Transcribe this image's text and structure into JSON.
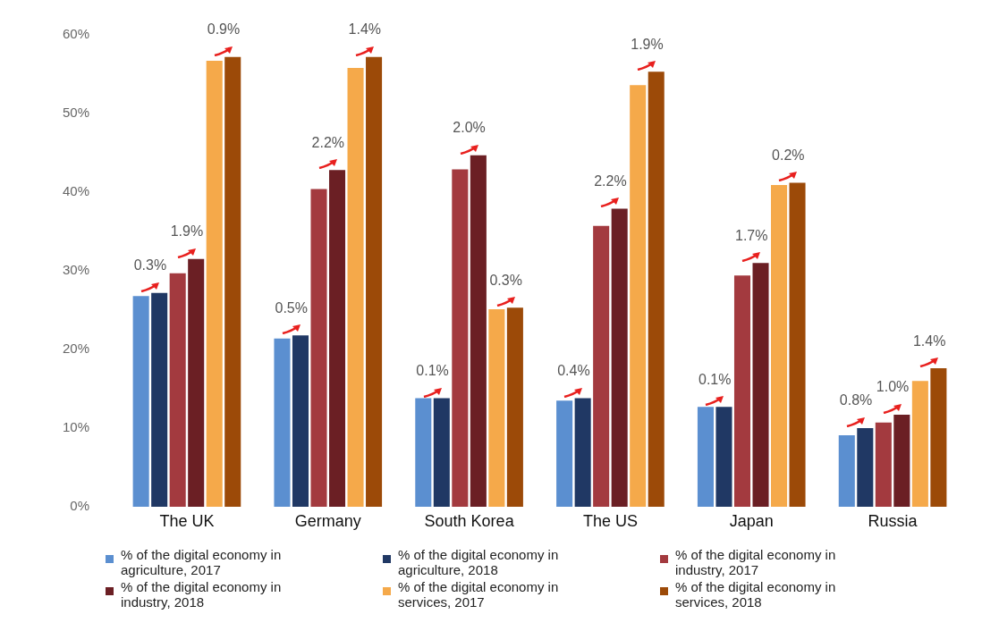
{
  "chart_data": {
    "type": "bar",
    "categories": [
      "The UK",
      "Germany",
      "South Korea",
      "The US",
      "Japan",
      "Russia"
    ],
    "series": [
      {
        "name": "% of the digital economy in agriculture, 2017",
        "color": "#5b8fd0",
        "values": [
          26.8,
          21.4,
          13.8,
          13.5,
          12.7,
          9.1
        ]
      },
      {
        "name": "% of the digital economy in agriculture, 2018",
        "color": "#203864",
        "values": [
          27.2,
          21.8,
          13.8,
          13.8,
          12.7,
          10.0
        ]
      },
      {
        "name": "% of the digital economy in industry, 2017",
        "color": "#a33a3f",
        "values": [
          29.7,
          40.4,
          42.9,
          35.7,
          29.4,
          10.7
        ]
      },
      {
        "name": "% of the digital economy in industry, 2018",
        "color": "#6b1f24",
        "values": [
          31.5,
          42.8,
          44.7,
          37.9,
          31.0,
          11.7
        ]
      },
      {
        "name": "% of the digital economy in services, 2017",
        "color": "#f5a94a",
        "values": [
          56.7,
          55.8,
          25.1,
          53.6,
          40.9,
          16.0
        ]
      },
      {
        "name": "% of the digital economy in services, 2018",
        "color": "#9c4a08",
        "values": [
          57.2,
          57.2,
          25.3,
          55.3,
          41.2,
          17.6
        ]
      }
    ],
    "ylim": [
      0,
      60
    ],
    "yticks": [
      {
        "value": 0,
        "label": "0%"
      },
      {
        "value": 10,
        "label": "10%"
      },
      {
        "value": 20,
        "label": "20%"
      },
      {
        "value": 30,
        "label": "30%"
      },
      {
        "value": 40,
        "label": "40%"
      },
      {
        "value": 50,
        "label": "50%"
      },
      {
        "value": 60,
        "label": "60%"
      }
    ],
    "grid": false,
    "legend": "bottom",
    "annotations": [
      {
        "text": "0.3%",
        "x": "The UK",
        "y": 27.2
      },
      {
        "text": "1.9%",
        "x": "The UK",
        "y": 31.5
      },
      "0.9%",
      {
        "text": "0.5%",
        "x": "Germany",
        "y": 21.8
      },
      {
        "text": "2.2%",
        "x": "Germany",
        "y": 42.8
      },
      "1.4%",
      {
        "text": "0.1%",
        "x": "South Korea",
        "y": 13.8
      },
      {
        "text": "2.0%",
        "x": "South Korea",
        "y": 44.7
      },
      {
        "text": "0.3%",
        "x": "South Korea",
        "y": 25.3
      },
      {
        "text": "0.4%",
        "x": "The US",
        "y": 13.8
      },
      {
        "text": "2.2%",
        "x": "The US",
        "y": 37.9
      },
      "1.9%",
      {
        "text": "0.1%",
        "x": "Japan",
        "y": 12.7
      },
      {
        "text": "1.7%",
        "x": "Japan",
        "y": 31.0
      },
      "0.2%",
      {
        "text": "0.8%",
        "x": "Russia",
        "y": 10.0
      },
      {
        "text": "1.0%",
        "x": "Russia",
        "y": 11.7
      },
      "1.4%"
    ]
  }
}
